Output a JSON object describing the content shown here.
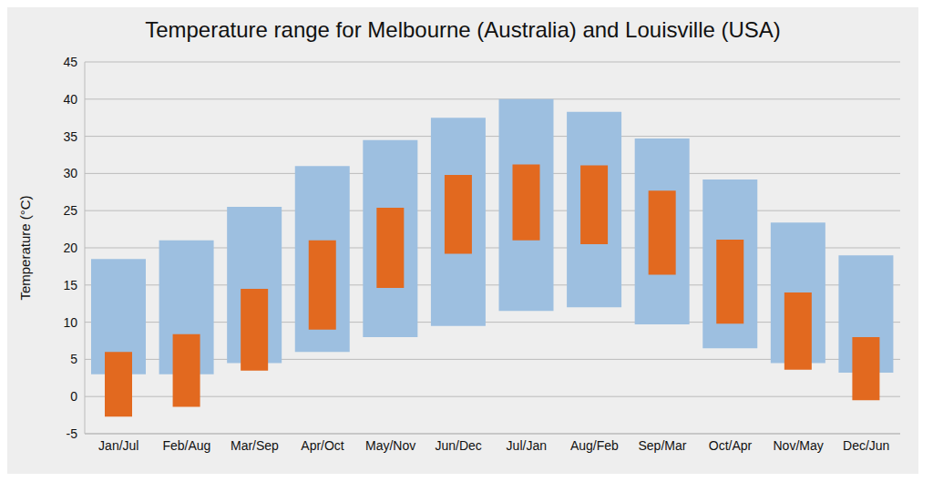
{
  "chart_data": {
    "type": "bar",
    "title": "Temperature range for Melbourne (Australia) and Louisville (USA)",
    "y_label": "Temperature (°C)",
    "categories": [
      "Jan/Jul",
      "Feb/Aug",
      "Mar/Sep",
      "Apr/Oct",
      "May/Nov",
      "Jun/Dec",
      "Jul/Jan",
      "Aug/Feb",
      "Sep/Mar",
      "Oct/Apr",
      "Nov/May",
      "Dec/Jun"
    ],
    "series": [
      {
        "color": "#9dbfe0",
        "values": [
          [
            3,
            18.5
          ],
          [
            3,
            21
          ],
          [
            4.5,
            25.5
          ],
          [
            6,
            31
          ],
          [
            8,
            34.5
          ],
          [
            9.5,
            37.5
          ],
          [
            11.5,
            40
          ],
          [
            12,
            38.3
          ],
          [
            9.7,
            34.7
          ],
          [
            6.5,
            29.2
          ],
          [
            4.5,
            23.4
          ],
          [
            3.2,
            19
          ]
        ]
      },
      {
        "color": "#e2691f",
        "values": [
          [
            -2.7,
            6
          ],
          [
            -1.4,
            8.4
          ],
          [
            3.5,
            14.5
          ],
          [
            9,
            21
          ],
          [
            14.6,
            25.4
          ],
          [
            19.2,
            29.8
          ],
          [
            21,
            31.2
          ],
          [
            20.5,
            31.1
          ],
          [
            16.4,
            27.7
          ],
          [
            9.8,
            21.1
          ],
          [
            3.6,
            14
          ],
          [
            -0.5,
            8
          ]
        ]
      }
    ],
    "ylim": [
      -5,
      45
    ],
    "yticks": [
      -5,
      0,
      5,
      10,
      15,
      20,
      25,
      30,
      35,
      40,
      45
    ],
    "grid": true
  }
}
